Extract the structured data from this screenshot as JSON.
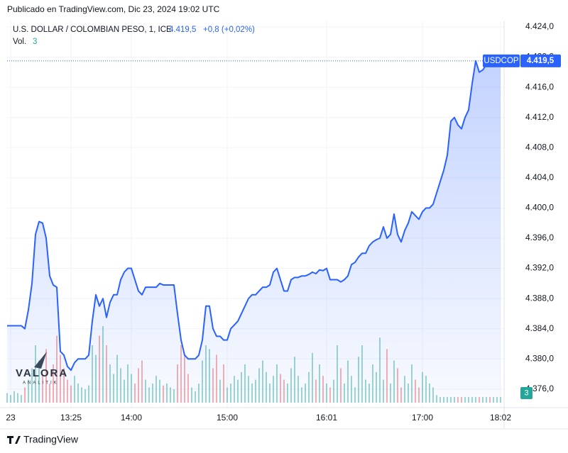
{
  "chart_data": {
    "type": "line",
    "publisher": "Publicado en TradingView.com, Dic 23, 2024 19:02 UTC",
    "title": "U.S. DOLLAR / COLOMBIAN PESO, 1, ICE",
    "last_label": "4.419,5",
    "change": "+0,8 (+0,02%)",
    "categories": [
      null,
      "23",
      null,
      null,
      null,
      null,
      null,
      null,
      null,
      null,
      null,
      null,
      null,
      null,
      null,
      null,
      null,
      null,
      "13:25",
      null,
      null,
      null,
      null,
      null,
      null,
      null,
      null,
      null,
      null,
      null,
      null,
      null,
      null,
      null,
      null,
      "14:00",
      null,
      null,
      null,
      null,
      null,
      null,
      null,
      null,
      null,
      null,
      null,
      null,
      null,
      null,
      null,
      null,
      null,
      null,
      null,
      null,
      null,
      null,
      null,
      null,
      null,
      null,
      "15:00",
      null,
      null,
      null,
      null,
      null,
      null,
      null,
      null,
      null,
      null,
      null,
      null,
      null,
      null,
      null,
      null,
      null,
      null,
      null,
      null,
      null,
      null,
      null,
      null,
      null,
      null,
      null,
      "16:01",
      null,
      null,
      null,
      null,
      null,
      null,
      null,
      null,
      null,
      null,
      null,
      null,
      null,
      null,
      null,
      null,
      null,
      null,
      null,
      null,
      null,
      null,
      null,
      null,
      null,
      null,
      "17:00",
      null,
      null,
      null,
      null,
      null,
      null,
      null,
      null,
      null,
      null,
      null,
      null,
      null,
      null,
      null,
      null,
      null,
      null,
      null,
      null,
      null,
      "18:02"
    ],
    "series": [
      {
        "name": "USDCOP",
        "color": "#2962ff",
        "values": [
          4384.4,
          4384.4,
          4384.4,
          4384.4,
          4384.4,
          4384.0,
          4386.5,
          4390,
          4396.5,
          4398.2,
          4398.0,
          4396,
          4391,
          4389.8,
          4389.5,
          4381,
          4380.5,
          4379,
          4378.5,
          4379.5,
          4380,
          4380,
          4380,
          4380.5,
          4385,
          4388.5,
          4387,
          4388,
          4385.5,
          4387.5,
          4388.5,
          4388.5,
          4390.5,
          4391.5,
          4392,
          4392,
          4390.5,
          4389,
          4388.5,
          4389.5,
          4389.5,
          4389.5,
          4389.5,
          4390,
          4389.8,
          4389.8,
          4389.8,
          4389.8,
          4386,
          4382.5,
          4380.5,
          4380,
          4380,
          4380,
          4380.5,
          4382.5,
          4387,
          4387,
          4384,
          4383,
          4383,
          4382.5,
          4382.5,
          4384,
          4384.5,
          4385,
          4386,
          4387,
          4388,
          4388.5,
          4388.5,
          4389,
          4389.5,
          4389.5,
          4389.8,
          4391.5,
          4392,
          4390.5,
          4389,
          4389,
          4390.5,
          4390.8,
          4390.8,
          4391,
          4391,
          4391.2,
          4391.5,
          4391.3,
          4391.8,
          4391.7,
          4392,
          4390.5,
          4390.5,
          4390.5,
          4390.2,
          4390.5,
          4391,
          4392.5,
          4392.8,
          4393.5,
          4394,
          4394,
          4395,
          4395.5,
          4395.8,
          4396,
          4397.5,
          4396,
          4396.5,
          4399.2,
          4396.5,
          4395.5,
          4397,
          4398,
          4399.5,
          4399,
          4398.5,
          4399.5,
          4400,
          4400,
          4400.5,
          4402,
          4403.5,
          4405,
          4407,
          4411.5,
          4412,
          4411,
          4410.5,
          4412,
          4413,
          4416.5,
          4419.5,
          4418,
          4418.3,
          4419,
          4418.8,
          4419.2,
          4419.5,
          4419.5
        ]
      }
    ],
    "volume": {
      "name": "Vol.",
      "up_color": "#26a69a",
      "down_color": "#ef5350",
      "values": [
        5,
        4,
        6,
        5,
        4,
        8,
        12,
        18,
        30,
        22,
        15,
        28,
        10,
        20,
        35,
        25,
        18,
        12,
        9,
        14,
        10,
        8,
        7,
        9,
        30,
        25,
        35,
        40,
        30,
        20,
        15,
        25,
        18,
        12,
        20,
        15,
        10,
        18,
        22,
        12,
        8,
        10,
        14,
        12,
        9,
        10,
        8,
        7,
        20,
        30,
        25,
        15,
        8,
        6,
        10,
        22,
        30,
        28,
        18,
        25,
        12,
        20,
        8,
        10,
        14,
        12,
        16,
        20,
        14,
        10,
        12,
        18,
        22,
        16,
        10,
        14,
        20,
        15,
        12,
        10,
        18,
        24,
        14,
        8,
        10,
        16,
        26,
        12,
        20,
        14,
        10,
        8,
        12,
        30,
        18,
        10,
        22,
        14,
        8,
        24,
        30,
        12,
        10,
        20,
        16,
        34,
        12,
        28,
        10,
        22,
        18,
        8,
        14,
        10,
        20,
        12,
        8,
        16,
        14,
        10,
        8,
        4,
        3,
        3,
        3,
        3,
        3,
        3,
        3,
        3,
        3,
        3,
        3,
        3,
        3,
        3,
        3,
        3,
        3,
        3
      ]
    },
    "ylim": [
      4374.2,
      4424.75
    ],
    "yticks": [
      {
        "value": 4376,
        "label": "4.376,0"
      },
      {
        "value": 4380,
        "label": "4.380,0"
      },
      {
        "value": 4384,
        "label": "4.384,0"
      },
      {
        "value": 4388,
        "label": "4.388,0"
      },
      {
        "value": 4392,
        "label": "4.392,0"
      },
      {
        "value": 4396,
        "label": "4.396,0"
      },
      {
        "value": 4400,
        "label": "4.400,0"
      },
      {
        "value": 4404,
        "label": "4.404,0"
      },
      {
        "value": 4408,
        "label": "4.408,0"
      },
      {
        "value": 4412,
        "label": "4.412,0"
      },
      {
        "value": 4416,
        "label": "4.416,0"
      },
      {
        "value": 4420,
        "label": "4.420,0"
      },
      {
        "value": 4424,
        "label": "4.424,0"
      }
    ],
    "grid": true,
    "watermark": "VALORA",
    "watermark_sub": "ANALITIK",
    "branding": "TradingView"
  }
}
